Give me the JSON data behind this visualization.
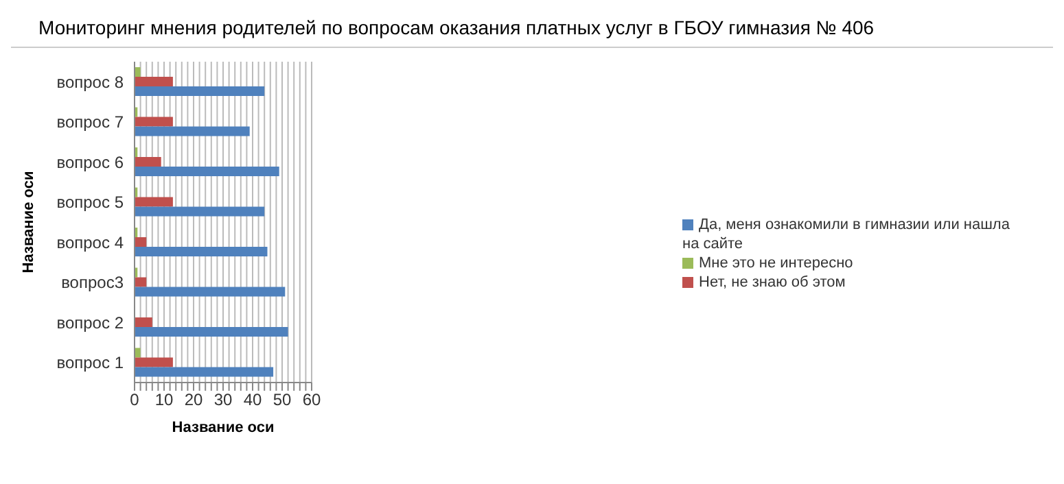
{
  "chart_data": {
    "type": "bar",
    "orientation": "horizontal",
    "title": "Мониторинг мнения родителей по вопросам оказания платных услуг в ГБОУ гимназия № 406",
    "xlabel": "Название оси",
    "ylabel": "Название оси",
    "categories": [
      "вопрос 8",
      "вопрос 7",
      "вопрос 6",
      "вопрос 5",
      "вопрос 4",
      "вопрос3",
      "вопрос 2",
      "вопрос 1"
    ],
    "series": [
      {
        "name": "Мне это не интересно",
        "color": "#9bbb59",
        "values": [
          2,
          1,
          1,
          1,
          1,
          1,
          0,
          2
        ]
      },
      {
        "name": "Нет, не знаю об этом",
        "color": "#c0504d",
        "values": [
          13,
          13,
          9,
          13,
          4,
          4,
          6,
          13
        ]
      },
      {
        "name": "Да, меня ознакомили в гимназии или нашла на сайте",
        "color": "#4f81bd",
        "values": [
          44,
          39,
          49,
          44,
          45,
          51,
          52,
          47
        ]
      }
    ],
    "xlim": [
      0,
      60
    ],
    "xticks": [
      0,
      {
        "value": 2,
        "label": null
      },
      {
        "value": 4,
        "label": null
      },
      {
        "value": 6,
        "label": null
      },
      {
        "value": 8,
        "label": null
      },
      10,
      {
        "value": 12,
        "label": null
      },
      {
        "value": 14,
        "label": null
      },
      {
        "value": 16,
        "label": null
      },
      {
        "value": 18,
        "label": null
      },
      20,
      {
        "value": 22,
        "label": null
      },
      {
        "value": 24,
        "label": null
      },
      {
        "value": 26,
        "label": null
      },
      {
        "value": 28,
        "label": null
      },
      30,
      {
        "value": 32,
        "label": null
      },
      {
        "value": 34,
        "label": null
      },
      {
        "value": 36,
        "label": null
      },
      {
        "value": 38,
        "label": null
      },
      40,
      {
        "value": 42,
        "label": null
      },
      {
        "value": 44,
        "label": null
      },
      {
        "value": 46,
        "label": null
      },
      {
        "value": 48,
        "label": null
      },
      50,
      {
        "value": 52,
        "label": null
      },
      {
        "value": 54,
        "label": null
      },
      {
        "value": 56,
        "label": null
      },
      {
        "value": 58,
        "label": null
      },
      60
    ],
    "grid": "x",
    "legend": "right"
  }
}
